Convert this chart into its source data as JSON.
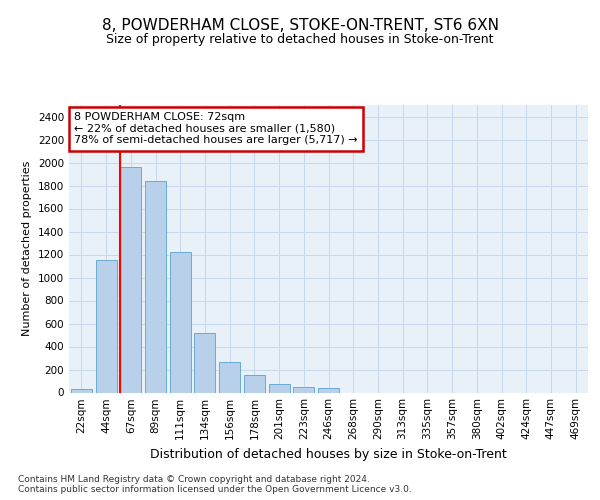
{
  "title": "8, POWDERHAM CLOSE, STOKE-ON-TRENT, ST6 6XN",
  "subtitle": "Size of property relative to detached houses in Stoke-on-Trent",
  "xlabel": "Distribution of detached houses by size in Stoke-on-Trent",
  "ylabel": "Number of detached properties",
  "bar_labels": [
    "22sqm",
    "44sqm",
    "67sqm",
    "89sqm",
    "111sqm",
    "134sqm",
    "156sqm",
    "178sqm",
    "201sqm",
    "223sqm",
    "246sqm",
    "268sqm",
    "290sqm",
    "313sqm",
    "335sqm",
    "357sqm",
    "380sqm",
    "402sqm",
    "424sqm",
    "447sqm",
    "469sqm"
  ],
  "bar_values": [
    30,
    1150,
    1960,
    1840,
    1220,
    520,
    265,
    148,
    78,
    50,
    35,
    0,
    0,
    0,
    0,
    0,
    0,
    0,
    0,
    0,
    0
  ],
  "bar_color": "#b8d0ea",
  "bar_edge_color": "#6aaad4",
  "grid_color": "#c8d8ec",
  "background_color": "#e8f0f8",
  "red_line_index": 2,
  "annotation_line1": "8 POWDERHAM CLOSE: 72sqm",
  "annotation_line2": "← 22% of detached houses are smaller (1,580)",
  "annotation_line3": "78% of semi-detached houses are larger (5,717) →",
  "annotation_box_color": "#ffffff",
  "annotation_box_edge_color": "#cc0000",
  "footnote": "Contains HM Land Registry data © Crown copyright and database right 2024.\nContains public sector information licensed under the Open Government Licence v3.0.",
  "ylim": [
    0,
    2500
  ],
  "yticks": [
    0,
    200,
    400,
    600,
    800,
    1000,
    1200,
    1400,
    1600,
    1800,
    2000,
    2200,
    2400
  ],
  "title_fontsize": 11,
  "subtitle_fontsize": 9,
  "ylabel_fontsize": 8,
  "xlabel_fontsize": 9,
  "tick_fontsize": 7.5,
  "annot_fontsize": 8,
  "footnote_fontsize": 6.5
}
